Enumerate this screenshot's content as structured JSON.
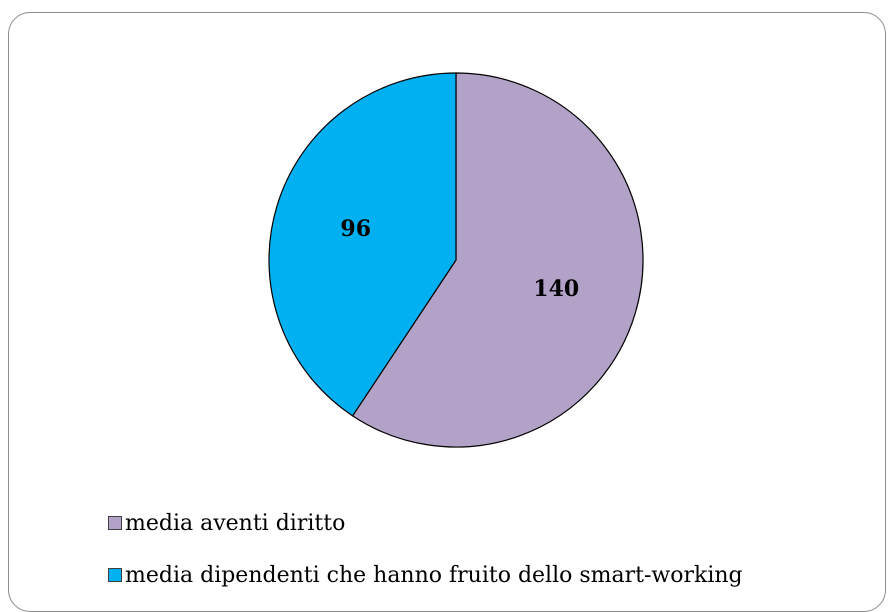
{
  "chart_data": {
    "type": "pie",
    "categories": [
      "media aventi diritto",
      "media dipendenti che hanno fruito dello smart-working"
    ],
    "values": [
      140,
      96
    ],
    "data_labels": [
      "140",
      "96"
    ],
    "colors": [
      "#B3A2C7",
      "#00B0F0"
    ],
    "title": "",
    "legend_position": "bottom-left"
  },
  "legend": {
    "items": [
      {
        "label": "media aventi diritto",
        "color": "#B3A2C7"
      },
      {
        "label": "media dipendenti che hanno fruito dello smart-working",
        "color": "#00B0F0"
      }
    ]
  }
}
